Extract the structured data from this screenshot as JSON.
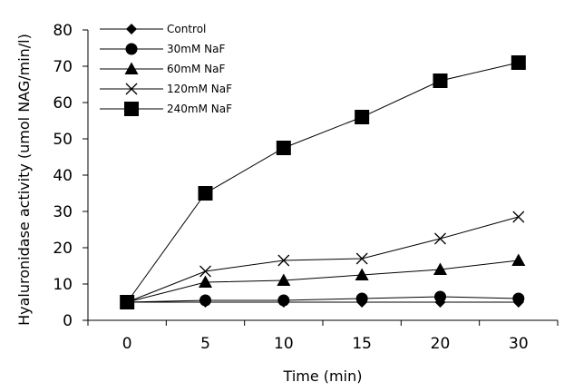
{
  "chart_data": {
    "type": "line",
    "xlabel": "Time (min)",
    "ylabel": "Hyaluronidase activity (umol NAG/min/l)",
    "categories": [
      "0",
      "5",
      "10",
      "15",
      "20",
      "30"
    ],
    "ylim": [
      0,
      80
    ],
    "yticks": [
      0,
      10,
      20,
      30,
      40,
      50,
      60,
      70,
      80
    ],
    "grid": false,
    "legend_position": "top-left",
    "series": [
      {
        "name": "Control",
        "marker": "diamond",
        "values": [
          5,
          5,
          5,
          5,
          5,
          5
        ]
      },
      {
        "name": "30mM NaF",
        "marker": "circle",
        "values": [
          5,
          5.5,
          5.5,
          6,
          6.5,
          6
        ]
      },
      {
        "name": "60mM NaF",
        "marker": "triangle",
        "values": [
          5,
          10.5,
          11,
          12.5,
          14,
          16.5
        ]
      },
      {
        "name": "120mM NaF",
        "marker": "x",
        "values": [
          5,
          13.5,
          16.5,
          17,
          22.5,
          28.5
        ]
      },
      {
        "name": "240mM NaF",
        "marker": "square",
        "values": [
          5,
          35,
          47.5,
          56,
          66,
          71
        ]
      }
    ]
  }
}
